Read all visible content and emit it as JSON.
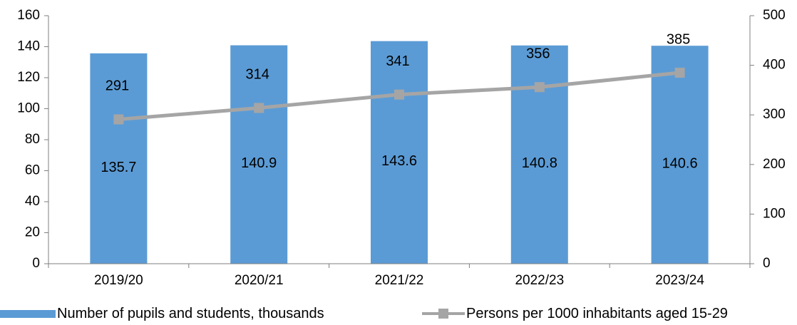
{
  "chart_data": {
    "type": "bar",
    "categories": [
      "2019/20",
      "2020/21",
      "2021/22",
      "2022/23",
      "2023/24"
    ],
    "series": [
      {
        "name": "Number of pupils and students, thousands",
        "type": "bar",
        "axis": "left",
        "color": "#5b9bd5",
        "values": [
          135.7,
          140.9,
          143.6,
          140.8,
          140.6
        ],
        "labels": [
          "135.7",
          "140.9",
          "143.6",
          "140.8",
          "140.6"
        ]
      },
      {
        "name": "Persons per 1000 inhabitants aged 15-29",
        "type": "line",
        "axis": "right",
        "color": "#a5a5a5",
        "marker": "square",
        "values": [
          291,
          314,
          341,
          356,
          385
        ],
        "labels": [
          "291",
          "314",
          "341",
          "356",
          "385"
        ]
      }
    ],
    "y_left": {
      "min": 0,
      "max": 160,
      "ticks": [
        "0",
        "20",
        "40",
        "60",
        "80",
        "100",
        "120",
        "140",
        "160"
      ]
    },
    "y_right": {
      "min": 0,
      "max": 500,
      "ticks": [
        "0",
        "100",
        "200",
        "300",
        "400",
        "500"
      ]
    },
    "grid": false,
    "legend_position": "bottom"
  }
}
